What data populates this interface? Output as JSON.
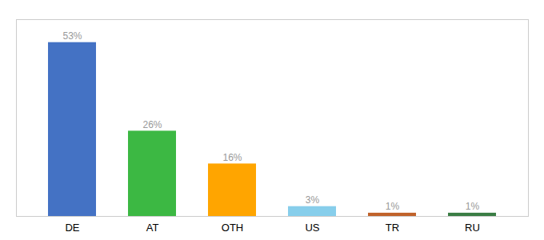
{
  "chart_data": {
    "type": "bar",
    "categories": [
      "DE",
      "AT",
      "OTH",
      "US",
      "TR",
      "RU"
    ],
    "values": [
      53,
      26,
      16,
      3,
      1,
      1
    ],
    "value_labels": [
      "53%",
      "26%",
      "16%",
      "3%",
      "1%",
      "1%"
    ],
    "colors": [
      "#4472C4",
      "#3CB843",
      "#FFA500",
      "#87CEEB",
      "#C0622B",
      "#3A7D44"
    ],
    "ylim": [
      0,
      60
    ],
    "data_labels": true,
    "tick_labels": "x",
    "grid": false
  }
}
